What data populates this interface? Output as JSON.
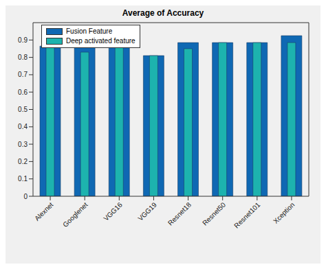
{
  "chart_data": {
    "type": "bar",
    "title": "Average of Accuracy",
    "categories": [
      "Alexnet",
      "Googlenet",
      "VGG16",
      "VGG19",
      "Resnet18",
      "Resnet50",
      "Resnet101",
      "Xception"
    ],
    "series": [
      {
        "name": "Fusion Feature",
        "color": "#0f68b3",
        "values": [
          0.865,
          0.865,
          0.905,
          0.81,
          0.885,
          0.885,
          0.885,
          0.925
        ]
      },
      {
        "name": "Deep activated feature",
        "color": "#1db3ae",
        "values": [
          0.865,
          0.83,
          0.905,
          0.81,
          0.85,
          0.885,
          0.885,
          0.885
        ]
      }
    ],
    "ylim": [
      0,
      1
    ],
    "yticks": [
      0,
      0.1,
      0.2,
      0.3,
      0.4,
      0.5,
      0.6,
      0.7,
      0.8,
      0.9
    ],
    "grid": false,
    "legend": "upper left"
  }
}
